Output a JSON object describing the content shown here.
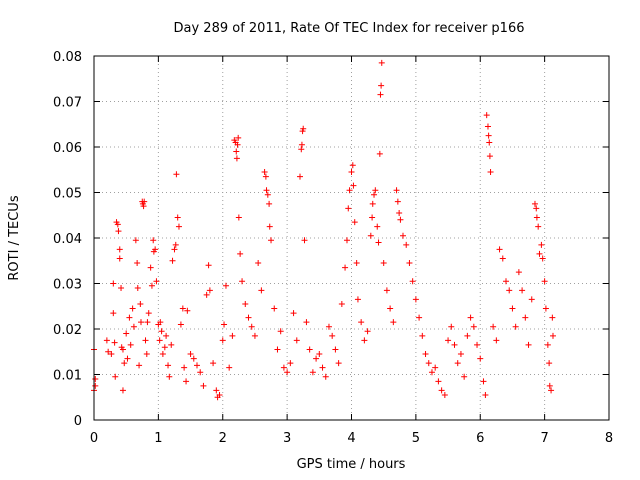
{
  "chart_data": {
    "type": "scatter",
    "title": "Day 289 of 2011, Rate Of TEC Index for receiver p166",
    "xlabel": "GPS time / hours",
    "ylabel": "ROTI / TECUs",
    "xlim": [
      0,
      8
    ],
    "ylim": [
      0,
      0.08
    ],
    "xticks": [
      0,
      1,
      2,
      3,
      4,
      5,
      6,
      7,
      8
    ],
    "yticks": [
      0,
      0.01,
      0.02,
      0.03,
      0.04,
      0.05,
      0.06,
      0.07,
      0.08
    ],
    "xtick_labels": [
      "0",
      "1",
      "2",
      "3",
      "4",
      "5",
      "6",
      "7",
      "8"
    ],
    "ytick_labels": [
      "0",
      "0.01",
      "0.02",
      "0.03",
      "0.04",
      "0.05",
      "0.06",
      "0.07",
      "0.08"
    ],
    "grid": true,
    "marker": "+",
    "color": "#ff0000",
    "series": [
      {
        "points": [
          [
            0.0,
            0.0155
          ],
          [
            0.0,
            0.0065
          ],
          [
            0.02,
            0.009
          ],
          [
            0.02,
            0.0075
          ],
          [
            0.2,
            0.0175
          ],
          [
            0.22,
            0.015
          ],
          [
            0.27,
            0.0145
          ],
          [
            0.3,
            0.03
          ],
          [
            0.3,
            0.0235
          ],
          [
            0.32,
            0.017
          ],
          [
            0.33,
            0.0095
          ],
          [
            0.35,
            0.0435
          ],
          [
            0.37,
            0.043
          ],
          [
            0.38,
            0.0415
          ],
          [
            0.4,
            0.0375
          ],
          [
            0.4,
            0.0355
          ],
          [
            0.42,
            0.029
          ],
          [
            0.43,
            0.016
          ],
          [
            0.45,
            0.0155
          ],
          [
            0.45,
            0.0065
          ],
          [
            0.47,
            0.0125
          ],
          [
            0.5,
            0.019
          ],
          [
            0.52,
            0.0135
          ],
          [
            0.55,
            0.0225
          ],
          [
            0.57,
            0.0165
          ],
          [
            0.6,
            0.0245
          ],
          [
            0.62,
            0.0205
          ],
          [
            0.65,
            0.0395
          ],
          [
            0.67,
            0.0345
          ],
          [
            0.68,
            0.029
          ],
          [
            0.7,
            0.012
          ],
          [
            0.72,
            0.0255
          ],
          [
            0.73,
            0.0215
          ],
          [
            0.75,
            0.048
          ],
          [
            0.76,
            0.0475
          ],
          [
            0.77,
            0.047
          ],
          [
            0.78,
            0.048
          ],
          [
            0.8,
            0.0175
          ],
          [
            0.82,
            0.0145
          ],
          [
            0.83,
            0.0215
          ],
          [
            0.85,
            0.0235
          ],
          [
            0.88,
            0.0335
          ],
          [
            0.9,
            0.0295
          ],
          [
            0.92,
            0.0395
          ],
          [
            0.93,
            0.037
          ],
          [
            0.95,
            0.0375
          ],
          [
            0.97,
            0.0305
          ],
          [
            1.0,
            0.021
          ],
          [
            1.02,
            0.0175
          ],
          [
            1.03,
            0.0215
          ],
          [
            1.05,
            0.0195
          ],
          [
            1.07,
            0.0145
          ],
          [
            1.1,
            0.016
          ],
          [
            1.12,
            0.0185
          ],
          [
            1.15,
            0.012
          ],
          [
            1.17,
            0.0095
          ],
          [
            1.2,
            0.0165
          ],
          [
            1.22,
            0.035
          ],
          [
            1.25,
            0.0375
          ],
          [
            1.27,
            0.0385
          ],
          [
            1.28,
            0.054
          ],
          [
            1.3,
            0.0445
          ],
          [
            1.32,
            0.0425
          ],
          [
            1.35,
            0.021
          ],
          [
            1.38,
            0.0245
          ],
          [
            1.4,
            0.0115
          ],
          [
            1.43,
            0.0085
          ],
          [
            1.45,
            0.024
          ],
          [
            1.5,
            0.0145
          ],
          [
            1.55,
            0.0135
          ],
          [
            1.6,
            0.012
          ],
          [
            1.65,
            0.0105
          ],
          [
            1.7,
            0.0075
          ],
          [
            1.75,
            0.0275
          ],
          [
            1.78,
            0.034
          ],
          [
            1.8,
            0.0285
          ],
          [
            1.85,
            0.0125
          ],
          [
            1.9,
            0.0065
          ],
          [
            1.92,
            0.005
          ],
          [
            1.95,
            0.0055
          ],
          [
            2.0,
            0.0175
          ],
          [
            2.02,
            0.021
          ],
          [
            2.05,
            0.0295
          ],
          [
            2.1,
            0.0115
          ],
          [
            2.15,
            0.0185
          ],
          [
            2.18,
            0.0615
          ],
          [
            2.2,
            0.061
          ],
          [
            2.21,
            0.059
          ],
          [
            2.22,
            0.0575
          ],
          [
            2.23,
            0.0605
          ],
          [
            2.24,
            0.062
          ],
          [
            2.25,
            0.0445
          ],
          [
            2.27,
            0.0365
          ],
          [
            2.3,
            0.0305
          ],
          [
            2.35,
            0.0255
          ],
          [
            2.4,
            0.0225
          ],
          [
            2.45,
            0.0205
          ],
          [
            2.5,
            0.0185
          ],
          [
            2.55,
            0.0345
          ],
          [
            2.6,
            0.0285
          ],
          [
            2.65,
            0.0545
          ],
          [
            2.67,
            0.0535
          ],
          [
            2.68,
            0.0505
          ],
          [
            2.7,
            0.0495
          ],
          [
            2.72,
            0.0475
          ],
          [
            2.73,
            0.0425
          ],
          [
            2.75,
            0.0395
          ],
          [
            2.8,
            0.0245
          ],
          [
            2.85,
            0.0155
          ],
          [
            2.9,
            0.0195
          ],
          [
            2.95,
            0.0115
          ],
          [
            3.0,
            0.0105
          ],
          [
            3.05,
            0.0125
          ],
          [
            3.1,
            0.0235
          ],
          [
            3.15,
            0.0175
          ],
          [
            3.2,
            0.0535
          ],
          [
            3.22,
            0.0595
          ],
          [
            3.23,
            0.0605
          ],
          [
            3.24,
            0.0635
          ],
          [
            3.25,
            0.064
          ],
          [
            3.27,
            0.0395
          ],
          [
            3.3,
            0.0215
          ],
          [
            3.35,
            0.0155
          ],
          [
            3.4,
            0.0105
          ],
          [
            3.45,
            0.0135
          ],
          [
            3.5,
            0.0145
          ],
          [
            3.55,
            0.0115
          ],
          [
            3.6,
            0.0095
          ],
          [
            3.65,
            0.0205
          ],
          [
            3.7,
            0.0185
          ],
          [
            3.75,
            0.0155
          ],
          [
            3.8,
            0.0125
          ],
          [
            3.85,
            0.0255
          ],
          [
            3.9,
            0.0335
          ],
          [
            3.93,
            0.0395
          ],
          [
            3.95,
            0.0465
          ],
          [
            3.97,
            0.0505
          ],
          [
            4.0,
            0.0545
          ],
          [
            4.02,
            0.056
          ],
          [
            4.03,
            0.0515
          ],
          [
            4.05,
            0.0435
          ],
          [
            4.08,
            0.0345
          ],
          [
            4.1,
            0.0265
          ],
          [
            4.15,
            0.0215
          ],
          [
            4.2,
            0.0175
          ],
          [
            4.25,
            0.0195
          ],
          [
            4.3,
            0.0405
          ],
          [
            4.32,
            0.0445
          ],
          [
            4.33,
            0.0475
          ],
          [
            4.35,
            0.0495
          ],
          [
            4.37,
            0.0505
          ],
          [
            4.4,
            0.0425
          ],
          [
            4.42,
            0.039
          ],
          [
            4.44,
            0.0585
          ],
          [
            4.45,
            0.0715
          ],
          [
            4.46,
            0.0735
          ],
          [
            4.47,
            0.0785
          ],
          [
            4.5,
            0.0345
          ],
          [
            4.55,
            0.0285
          ],
          [
            4.6,
            0.0245
          ],
          [
            4.65,
            0.0215
          ],
          [
            4.7,
            0.0505
          ],
          [
            4.72,
            0.048
          ],
          [
            4.74,
            0.0455
          ],
          [
            4.76,
            0.044
          ],
          [
            4.8,
            0.0405
          ],
          [
            4.85,
            0.0385
          ],
          [
            4.9,
            0.0345
          ],
          [
            4.95,
            0.0305
          ],
          [
            5.0,
            0.0265
          ],
          [
            5.05,
            0.0225
          ],
          [
            5.1,
            0.0185
          ],
          [
            5.15,
            0.0145
          ],
          [
            5.2,
            0.0125
          ],
          [
            5.25,
            0.0105
          ],
          [
            5.3,
            0.0115
          ],
          [
            5.35,
            0.0085
          ],
          [
            5.4,
            0.0065
          ],
          [
            5.45,
            0.0055
          ],
          [
            5.5,
            0.0175
          ],
          [
            5.55,
            0.0205
          ],
          [
            5.6,
            0.0165
          ],
          [
            5.65,
            0.0125
          ],
          [
            5.7,
            0.0145
          ],
          [
            5.75,
            0.0095
          ],
          [
            5.8,
            0.0185
          ],
          [
            5.85,
            0.0225
          ],
          [
            5.9,
            0.0205
          ],
          [
            5.95,
            0.0165
          ],
          [
            6.0,
            0.0135
          ],
          [
            6.05,
            0.0085
          ],
          [
            6.08,
            0.0055
          ],
          [
            6.1,
            0.067
          ],
          [
            6.12,
            0.0645
          ],
          [
            6.13,
            0.0625
          ],
          [
            6.14,
            0.061
          ],
          [
            6.15,
            0.058
          ],
          [
            6.16,
            0.0545
          ],
          [
            6.2,
            0.0205
          ],
          [
            6.25,
            0.0175
          ],
          [
            6.3,
            0.0375
          ],
          [
            6.35,
            0.0355
          ],
          [
            6.4,
            0.0305
          ],
          [
            6.45,
            0.0285
          ],
          [
            6.5,
            0.0245
          ],
          [
            6.55,
            0.0205
          ],
          [
            6.6,
            0.0325
          ],
          [
            6.65,
            0.0285
          ],
          [
            6.7,
            0.0225
          ],
          [
            6.75,
            0.0165
          ],
          [
            6.8,
            0.0265
          ],
          [
            6.85,
            0.0475
          ],
          [
            6.87,
            0.0465
          ],
          [
            6.88,
            0.0445
          ],
          [
            6.9,
            0.0425
          ],
          [
            6.92,
            0.0365
          ],
          [
            6.95,
            0.0385
          ],
          [
            6.97,
            0.0355
          ],
          [
            7.0,
            0.0305
          ],
          [
            7.02,
            0.0245
          ],
          [
            7.05,
            0.0165
          ],
          [
            7.07,
            0.0125
          ],
          [
            7.08,
            0.0075
          ],
          [
            7.1,
            0.0065
          ],
          [
            7.12,
            0.0225
          ],
          [
            7.13,
            0.0185
          ]
        ]
      }
    ]
  }
}
